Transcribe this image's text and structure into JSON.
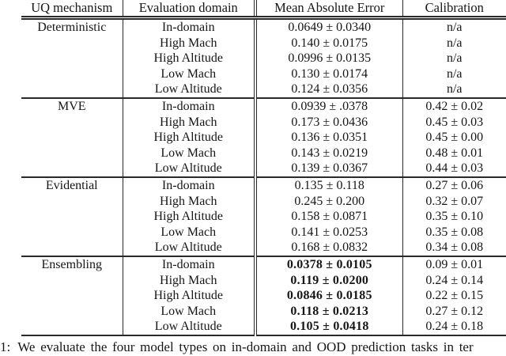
{
  "table": {
    "headers": [
      "UQ mechanism",
      "Evaluation domain",
      "Mean Absolute Error",
      "Calibration"
    ],
    "sections": [
      {
        "mechanism": "Deterministic",
        "mae_bold": false,
        "rows": [
          {
            "domain": "In-domain",
            "mae": "0.0649 ± 0.0340",
            "calibration": "n/a"
          },
          {
            "domain": "High Mach",
            "mae": "0.140 ± 0.0175",
            "calibration": "n/a"
          },
          {
            "domain": "High Altitude",
            "mae": "0.0996 ± 0.0135",
            "calibration": "n/a"
          },
          {
            "domain": "Low Mach",
            "mae": "0.130 ± 0.0174",
            "calibration": "n/a"
          },
          {
            "domain": "Low Altitude",
            "mae": "0.124 ± 0.0356",
            "calibration": "n/a"
          }
        ]
      },
      {
        "mechanism": "MVE",
        "mae_bold": false,
        "rows": [
          {
            "domain": "In-domain",
            "mae": "0.0939 ± .0378",
            "calibration": "0.42 ± 0.02"
          },
          {
            "domain": "High Mach",
            "mae": "0.173 ± 0.0436",
            "calibration": "0.45 ± 0.03"
          },
          {
            "domain": "High Altitude",
            "mae": "0.136 ± 0.0351",
            "calibration": "0.45 ± 0.00"
          },
          {
            "domain": "Low Mach",
            "mae": "0.143 ± 0.0219",
            "calibration": "0.48 ± 0.01"
          },
          {
            "domain": "Low Altitude",
            "mae": "0.139 ± 0.0367",
            "calibration": "0.44 ± 0.03"
          }
        ]
      },
      {
        "mechanism": "Evidential",
        "mae_bold": false,
        "rows": [
          {
            "domain": "In-domain",
            "mae": "0.135 ± 0.118",
            "calibration": "0.27 ± 0.06"
          },
          {
            "domain": "High Mach",
            "mae": "0.245 ± 0.200",
            "calibration": "0.32 ± 0.07"
          },
          {
            "domain": "High Altitude",
            "mae": "0.158 ± 0.0871",
            "calibration": "0.35 ± 0.10"
          },
          {
            "domain": "Low Mach",
            "mae": "0.141 ± 0.0253",
            "calibration": "0.35 ± 0.08"
          },
          {
            "domain": "Low Altitude",
            "mae": "0.168 ± 0.0832",
            "calibration": "0.34 ± 0.08"
          }
        ]
      },
      {
        "mechanism": "Ensembling",
        "mae_bold": true,
        "rows": [
          {
            "domain": "In-domain",
            "mae": "0.0378 ± 0.0105",
            "calibration": "0.09 ± 0.01"
          },
          {
            "domain": "High Mach",
            "mae": "0.119 ± 0.0200",
            "calibration": "0.24 ± 0.14"
          },
          {
            "domain": "High Altitude",
            "mae": "0.0846 ± 0.0185",
            "calibration": "0.22 ± 0.15"
          },
          {
            "domain": "Low Mach",
            "mae": "0.118 ± 0.0213",
            "calibration": "0.27 ± 0.12"
          },
          {
            "domain": "Low Altitude",
            "mae": "0.105 ± 0.0418",
            "calibration": "0.24 ± 0.18"
          }
        ]
      }
    ]
  },
  "caption": {
    "label": "1:",
    "text": "We evaluate the four model types on in-domain and OOD prediction tasks in ter"
  }
}
